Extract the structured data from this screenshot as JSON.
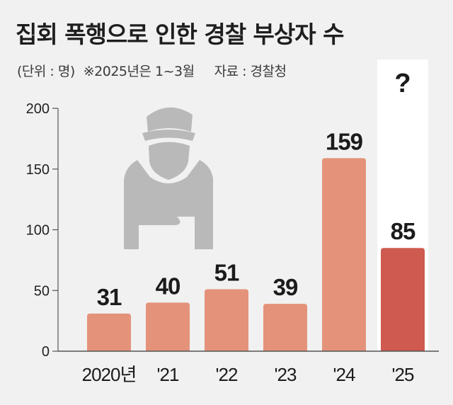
{
  "header": {
    "title": "집회 폭행으로 인한 경찰 부상자 수",
    "unit": "(단위 : 명)",
    "note": "※2025년은 1~3월",
    "source": "자료 : 경찰청"
  },
  "highlight_mark": "?",
  "icon": "injured-police-officer-icon",
  "colors": {
    "background": "#f1f1f1",
    "bar": "#e4937a",
    "bar_highlight": "#cf5a4f",
    "highlight_panel": "#ffffff",
    "axis": "#555555",
    "icon": "#b9b9b9"
  },
  "chart_data": {
    "type": "bar",
    "categories": [
      "2020년",
      "'21",
      "'22",
      "'23",
      "'24",
      "'25"
    ],
    "values": [
      31,
      40,
      51,
      39,
      159,
      85
    ],
    "ylim": [
      0,
      200
    ],
    "yticks": [
      0,
      50,
      100,
      150,
      200
    ],
    "highlight_index": 5,
    "grid": false,
    "title": "",
    "xlabel": "",
    "ylabel": ""
  }
}
